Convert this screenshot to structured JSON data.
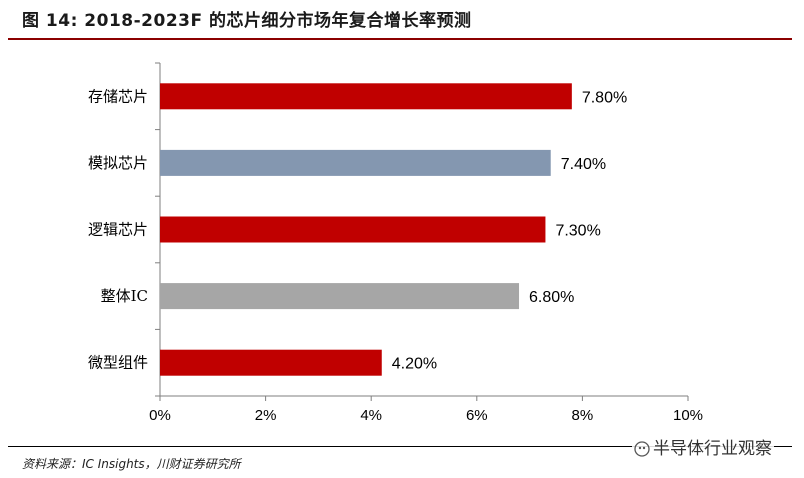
{
  "title": "图 14:  2018-2023F 的芯片细分市场年复合增长率预测",
  "source": "资料来源：IC Insights，川财证券研究所",
  "watermark": "半导体行业观察",
  "colors": {
    "red": "#C00000",
    "blue_gray": "#8497B0",
    "gray": "#A6A6A6"
  },
  "chart_data": {
    "type": "bar",
    "orientation": "horizontal",
    "categories": [
      "存储芯片",
      "模拟芯片",
      "逻辑芯片",
      "整体IC",
      "微型组件"
    ],
    "values": [
      7.8,
      7.4,
      7.3,
      6.8,
      4.2
    ],
    "value_labels": [
      "7.80%",
      "7.40%",
      "7.30%",
      "6.80%",
      "4.20%"
    ],
    "bar_colors": [
      "#C00000",
      "#8497B0",
      "#C00000",
      "#A6A6A6",
      "#C00000"
    ],
    "xlim": [
      0,
      10
    ],
    "xticks": [
      0,
      2,
      4,
      6,
      8,
      10
    ],
    "xtick_labels": [
      "0%",
      "2%",
      "4%",
      "6%",
      "8%",
      "10%"
    ],
    "grid": false,
    "legend": "none"
  }
}
